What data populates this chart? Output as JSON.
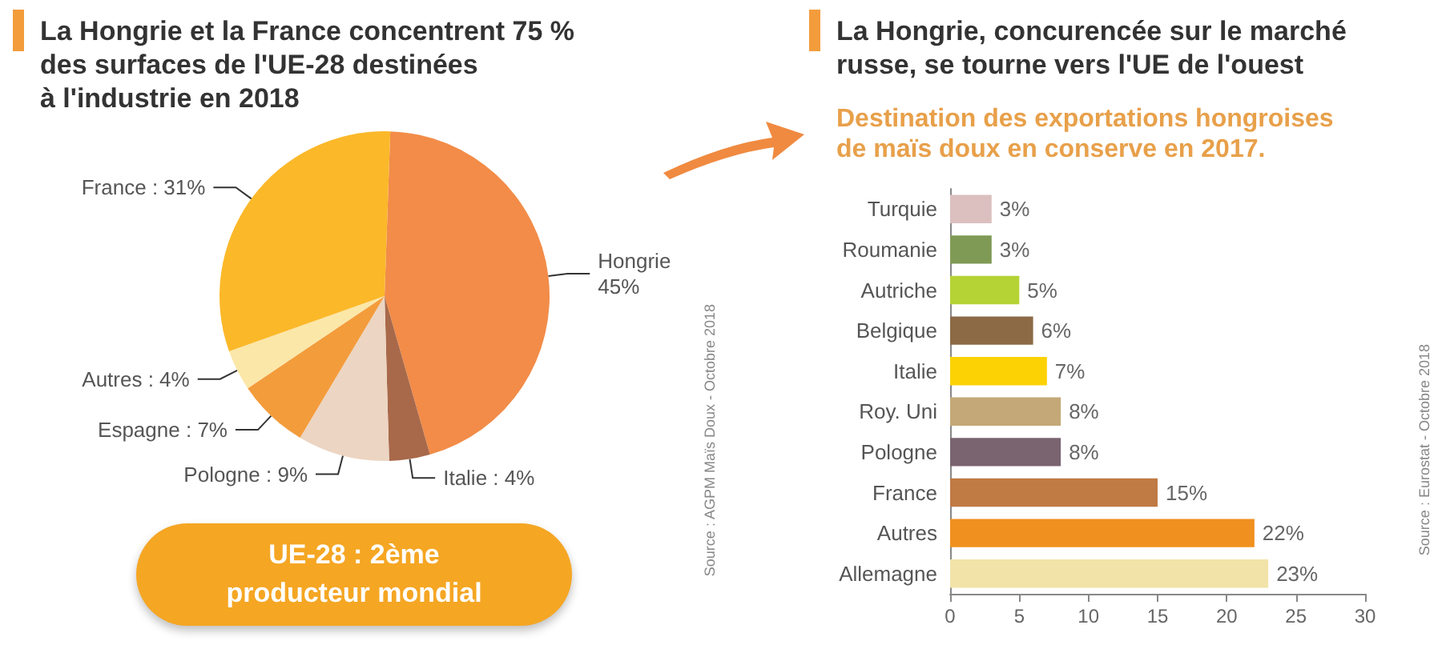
{
  "chart_data": [
    {
      "type": "pie",
      "title": "La Hongrie et la France concentrent 75 %\ndes surfaces de l'UE-28 destinées\nà l'industrie en 2018",
      "categories": [
        "Hongrie",
        "Italie",
        "Pologne",
        "Espagne",
        "Autres",
        "France"
      ],
      "values": [
        45,
        4,
        9,
        7,
        4,
        31
      ],
      "value_labels": [
        "45%",
        "4%",
        "9%",
        "7%",
        "4%",
        "31%"
      ],
      "colors": [
        "#f28c48",
        "#a8694a",
        "#ecd5c2",
        "#f39c3c",
        "#fbe7a8",
        "#fbb829"
      ],
      "legend": false,
      "annotations": [
        "UE-28 : 2ème producteur mondial",
        "Source : AGPM Maïs Doux - Octobre 2018"
      ]
    },
    {
      "type": "bar",
      "orientation": "horizontal",
      "title": "La Hongrie, concurencée sur le marché\nrusse, se tourne vers l'UE de l'ouest",
      "subtitle": "Destination des exportations hongroises\nde maïs doux en conserve en 2017.",
      "categories": [
        "Turquie",
        "Roumanie",
        "Autriche",
        "Belgique",
        "Italie",
        "Roy. Uni",
        "Pologne",
        "France",
        "Autres",
        "Allemagne"
      ],
      "values": [
        3,
        3,
        5,
        6,
        7,
        8,
        8,
        15,
        22,
        23
      ],
      "value_labels": [
        "3%",
        "3%",
        "5%",
        "6%",
        "7%",
        "8%",
        "8%",
        "15%",
        "22%",
        "23%"
      ],
      "colors": [
        "#dcc0c0",
        "#7f9a55",
        "#b5d334",
        "#8c6a45",
        "#fcd205",
        "#c4a877",
        "#7a6470",
        "#c07a44",
        "#f0901e",
        "#f2e3a8"
      ],
      "xlim": [
        0,
        30
      ],
      "xticks": [
        0,
        5,
        10,
        15,
        20,
        25,
        30
      ],
      "grid": false,
      "legend": false,
      "annotations": [
        "Source : Eurostat - Octobre 2018"
      ]
    }
  ]
}
